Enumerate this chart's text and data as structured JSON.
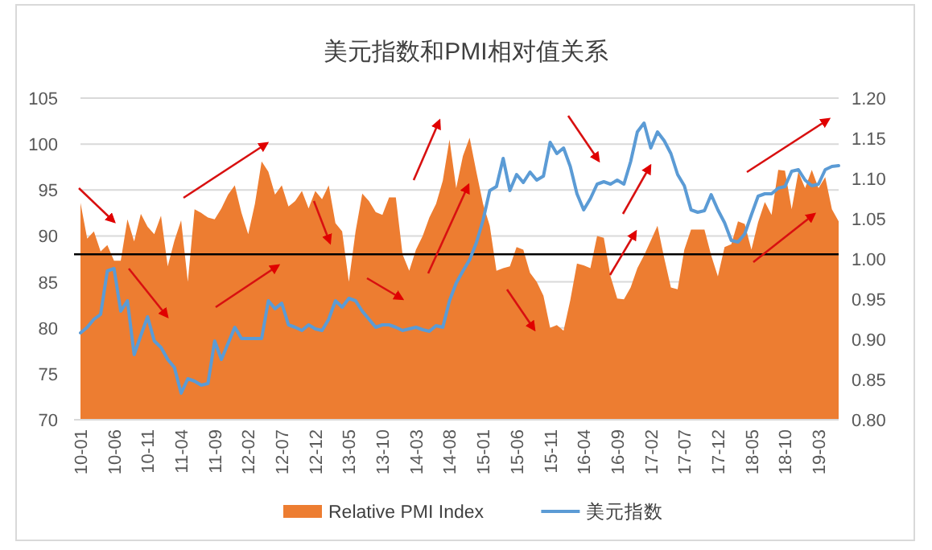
{
  "chart_data": {
    "type": "area",
    "title": "美元指数和PMI相对值关系",
    "categories": [
      "10-01",
      null,
      null,
      null,
      null,
      "10-06",
      null,
      null,
      null,
      null,
      "10-11",
      null,
      null,
      null,
      null,
      "11-04",
      null,
      null,
      null,
      null,
      "11-09",
      null,
      null,
      null,
      null,
      "12-02",
      null,
      null,
      null,
      null,
      "12-07",
      null,
      null,
      null,
      null,
      "12-12",
      null,
      null,
      null,
      null,
      "13-05",
      null,
      null,
      null,
      null,
      "13-10",
      null,
      null,
      null,
      null,
      "14-03",
      null,
      null,
      null,
      null,
      "14-08",
      null,
      null,
      null,
      null,
      "15-01",
      null,
      null,
      null,
      null,
      "15-06",
      null,
      null,
      null,
      null,
      "15-11",
      null,
      null,
      null,
      null,
      "16-04",
      null,
      null,
      null,
      null,
      "16-09",
      null,
      null,
      null,
      null,
      "17-02",
      null,
      null,
      null,
      null,
      "17-07",
      null,
      null,
      null,
      null,
      "17-12",
      null,
      null,
      null,
      null,
      "18-05",
      null,
      null,
      null,
      null,
      "18-10",
      null,
      null,
      null,
      null,
      "19-03",
      null,
      null,
      null
    ],
    "series": [
      {
        "name": "Relative PMI Index",
        "type": "area",
        "color": "#ed7d31",
        "values": [
          93.6,
          89.7,
          90.5,
          88.3,
          89.0,
          87.3,
          87.3,
          91.8,
          89.4,
          92.4,
          91.0,
          90.2,
          92.2,
          86.7,
          89.5,
          91.7,
          85.0,
          92.9,
          92.5,
          92.0,
          91.8,
          93.0,
          94.5,
          95.5,
          92.5,
          90.2,
          93.5,
          98.1,
          97.0,
          94.5,
          95.5,
          93.2,
          93.8,
          94.9,
          93.0,
          94.9,
          94.0,
          95.5,
          91.4,
          90.5,
          85.0,
          90.5,
          94.6,
          93.8,
          92.6,
          92.3,
          94.2,
          94.2,
          88.0,
          86.2,
          88.5,
          90.0,
          92.0,
          93.5,
          96.0,
          100.5,
          95.2,
          98.7,
          100.7,
          97.0,
          93.5,
          91.1,
          86.2,
          86.5,
          86.7,
          88.8,
          88.5,
          86.0,
          85.0,
          83.5,
          80.0,
          80.3,
          79.7,
          83.0,
          87.0,
          86.8,
          86.5,
          90.0,
          89.8,
          85.6,
          83.2,
          83.1,
          84.4,
          86.5,
          87.9,
          89.5,
          91.1,
          87.6,
          84.4,
          84.2,
          88.5,
          90.7,
          90.7,
          90.7,
          87.9,
          85.6,
          88.8,
          89.1,
          91.6,
          91.3,
          88.5,
          91.5,
          93.7,
          92.3,
          97.2,
          97.1,
          92.9,
          97.0,
          95.2,
          97.2,
          95.2,
          96.4,
          92.9,
          91.6
        ]
      },
      {
        "name": "美元指数",
        "type": "line",
        "axis": "y2",
        "color": "#5b9bd5",
        "values": [
          0.908,
          0.915,
          0.925,
          0.931,
          0.985,
          0.988,
          0.935,
          0.948,
          0.881,
          0.905,
          0.928,
          0.898,
          0.89,
          0.875,
          0.865,
          0.833,
          0.851,
          0.848,
          0.843,
          0.845,
          0.898,
          0.875,
          0.895,
          0.915,
          0.901,
          0.901,
          0.901,
          0.901,
          0.948,
          0.938,
          0.945,
          0.918,
          0.915,
          0.911,
          0.918,
          0.913,
          0.911,
          0.925,
          0.948,
          0.94,
          0.951,
          0.948,
          0.935,
          0.925,
          0.915,
          0.918,
          0.918,
          0.915,
          0.911,
          0.913,
          0.915,
          0.912,
          0.91,
          0.917,
          0.915,
          0.948,
          0.97,
          0.985,
          0.999,
          1.02,
          1.048,
          1.085,
          1.09,
          1.125,
          1.085,
          1.105,
          1.095,
          1.108,
          1.098,
          1.103,
          1.145,
          1.131,
          1.138,
          1.115,
          1.081,
          1.061,
          1.075,
          1.093,
          1.096,
          1.093,
          1.098,
          1.093,
          1.121,
          1.158,
          1.169,
          1.138,
          1.158,
          1.147,
          1.131,
          1.105,
          1.091,
          1.061,
          1.058,
          1.06,
          1.08,
          1.061,
          1.045,
          1.023,
          1.021,
          1.031,
          1.055,
          1.078,
          1.081,
          1.081,
          1.088,
          1.09,
          1.109,
          1.111,
          1.098,
          1.091,
          1.093,
          1.111,
          1.115,
          1.116
        ]
      }
    ],
    "ylim": [
      70,
      105
    ],
    "yticks": [
      70,
      75,
      80,
      85,
      90,
      95,
      100,
      105
    ],
    "y2lim": [
      0.8,
      1.2
    ],
    "y2ticks": [
      {
        "value": 0.8,
        "label": "0.80"
      },
      {
        "value": 0.85,
        "label": "0.85"
      },
      {
        "value": 0.9,
        "label": "0.90"
      },
      {
        "value": 0.95,
        "label": "0.95"
      },
      {
        "value": 1.0,
        "label": "1.00"
      },
      {
        "value": 1.05,
        "label": "1.05"
      },
      {
        "value": 1.1,
        "label": "1.10"
      },
      {
        "value": 1.15,
        "label": "1.15"
      },
      {
        "value": 1.2,
        "label": "1.20"
      }
    ],
    "ref_lines": [
      {
        "axis": "y",
        "value": 88,
        "color": "#000000"
      }
    ],
    "grid": "y",
    "legend": "bottom"
  }
}
